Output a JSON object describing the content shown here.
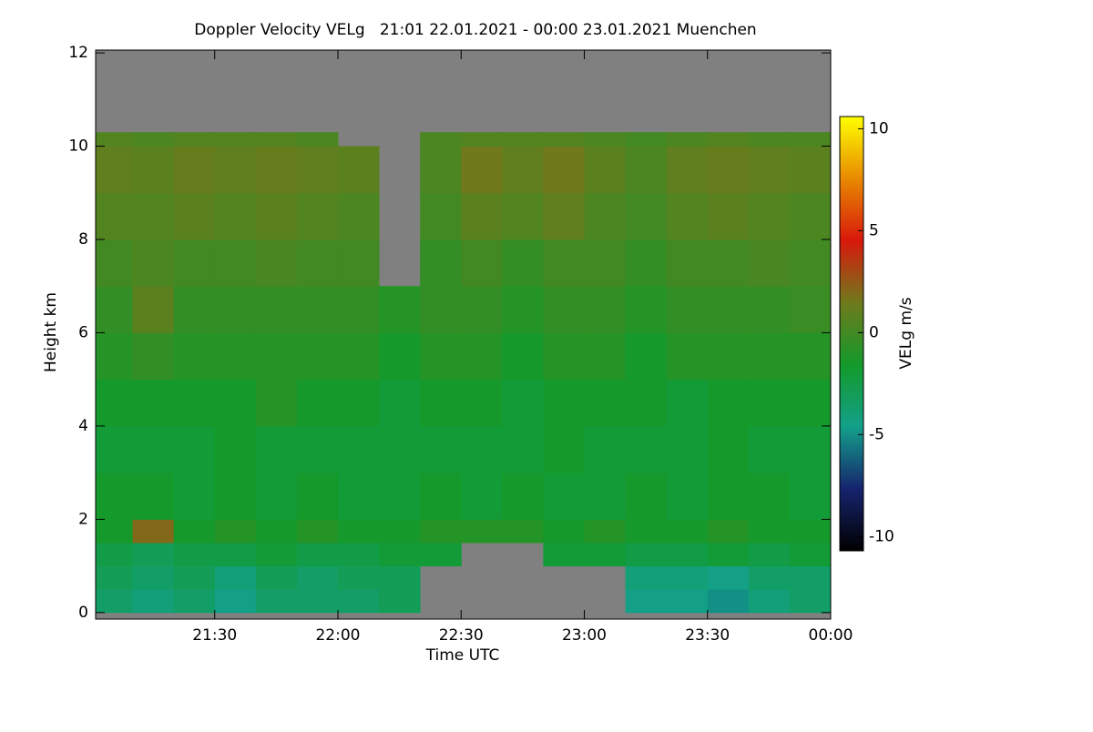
{
  "chart_data": {
    "type": "heatmap",
    "title": "Doppler Velocity VELg   21:01 22.01.2021 - 00:00 23.01.2021 Muenchen",
    "x_label": "Time UTC",
    "y_label": "Height km",
    "colorbar_label": "VELg m/s",
    "xlim": [
      21.0167,
      24
    ],
    "ylim": [
      -0.14,
      12.06
    ],
    "xticks": [
      {
        "value": 21.5,
        "label": "21:30"
      },
      {
        "value": 22,
        "label": "22:00"
      },
      {
        "value": 22.5,
        "label": "22:30"
      },
      {
        "value": 23,
        "label": "23:00"
      },
      {
        "value": 23.5,
        "label": "23:30"
      },
      {
        "value": 24,
        "label": "00:00"
      }
    ],
    "yticks": [
      0,
      2,
      4,
      6,
      8,
      10,
      12
    ],
    "clim": [
      -10.7,
      10.6
    ],
    "cticks": [
      -10,
      -5,
      0,
      5,
      10
    ],
    "colorscale": [
      "#000000",
      "#16246e",
      "#13a08a",
      "#139a2a",
      "#6f7a1c",
      "#d8180c",
      "#e88a00",
      "#ffff00"
    ],
    "missing_color": "#808080",
    "x_edges": [
      21.0167,
      21.1667,
      21.3333,
      21.5,
      21.6667,
      21.8333,
      22,
      22.1667,
      22.3333,
      22.5,
      22.6667,
      22.8333,
      23,
      23.1667,
      23.3333,
      23.5,
      23.6667,
      23.8333,
      24
    ],
    "y_edges": [
      0,
      0.5,
      1,
      1.5,
      2,
      3,
      4,
      5,
      6,
      7,
      8,
      9,
      10,
      10.3
    ],
    "z": [
      [
        -3.5,
        -4,
        -3.5,
        -4.5,
        -3.5,
        -3.5,
        -3.5,
        -3,
        null,
        null,
        null,
        null,
        null,
        -4.5,
        -4.5,
        -5,
        -4,
        -3.5
      ],
      [
        -3,
        -3.5,
        -3,
        -4,
        -3,
        -3.5,
        -3,
        -3,
        null,
        null,
        null,
        null,
        null,
        -4,
        -4,
        -4.5,
        -3.5,
        -3.5
      ],
      [
        -2.5,
        -3,
        -2.5,
        -2.5,
        -2,
        -2.5,
        -2.5,
        -2,
        -2,
        null,
        null,
        -2,
        -2,
        -2.5,
        -2.5,
        -2,
        -2.5,
        -2
      ],
      [
        -1.5,
        2,
        -1.5,
        -1,
        -1.5,
        -1,
        -1.5,
        -1.5,
        -1,
        -1,
        -1,
        -1.5,
        -1,
        -1.5,
        -1.5,
        -1,
        -1.5,
        -1.5
      ],
      [
        -1.5,
        -1.5,
        -2,
        -1.5,
        -2,
        -1.5,
        -2,
        -2,
        -1.5,
        -2,
        -1.5,
        -2,
        -2,
        -1.5,
        -2,
        -1.5,
        -1.5,
        -2
      ],
      [
        -2,
        -2,
        -2,
        -1.5,
        -2,
        -2,
        -2,
        -2,
        -2,
        -2,
        -2,
        -1.5,
        -2,
        -2,
        -2,
        -1.5,
        -2,
        -2
      ],
      [
        -1.5,
        -1.5,
        -1.5,
        -1.5,
        -1,
        -1.5,
        -1.5,
        -2,
        -1.5,
        -1.5,
        -2,
        -1.5,
        -1.5,
        -1.5,
        -2,
        -1.5,
        -1.5,
        -1.5
      ],
      [
        -1,
        -0.5,
        -1,
        -1,
        -1,
        -1,
        -1,
        -1.5,
        -1,
        -1,
        -1.5,
        -1,
        -1,
        -1.5,
        -1,
        -1,
        -1,
        -1
      ],
      [
        -0.5,
        0.8,
        -0.5,
        -0.5,
        -0.5,
        -0.5,
        -0.5,
        -1,
        -0.5,
        -0.5,
        -1,
        -0.5,
        -0.5,
        -1,
        -0.5,
        -0.5,
        -0.5,
        -0.3
      ],
      [
        0,
        0.3,
        0,
        0,
        0.2,
        0,
        0,
        null,
        -0.5,
        0,
        -0.5,
        0,
        0,
        -0.5,
        0,
        0,
        0.2,
        0
      ],
      [
        0.5,
        0.5,
        0.8,
        0.5,
        0.8,
        0.5,
        0.3,
        null,
        0,
        0.8,
        0.5,
        1,
        0.3,
        0,
        0.5,
        0.8,
        0.5,
        0.3
      ],
      [
        1,
        0.8,
        1.2,
        1,
        1.2,
        1,
        0.8,
        null,
        0.3,
        1.5,
        1,
        1.5,
        0.8,
        0.3,
        1,
        1.2,
        1,
        0.8
      ],
      [
        0.5,
        0.3,
        0.5,
        0.5,
        0.5,
        0.3,
        null,
        null,
        0.3,
        0.5,
        0.5,
        0.5,
        0.3,
        0,
        0.3,
        0.5,
        0.3,
        0.3
      ]
    ]
  }
}
